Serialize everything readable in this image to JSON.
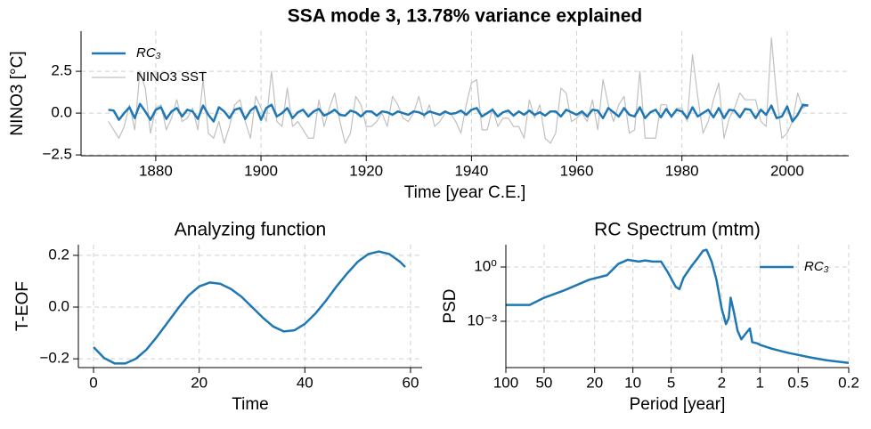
{
  "chart_data": [
    {
      "type": "line",
      "title": "SSA  mode 3, 13.78% variance explained",
      "xlabel": "Time [year C.E.]",
      "ylabel": "NINO3 [°C]",
      "x": [
        1871,
        1872,
        1873,
        1874,
        1875,
        1876,
        1877,
        1878,
        1879,
        1880,
        1881,
        1882,
        1883,
        1884,
        1885,
        1886,
        1887,
        1888,
        1889,
        1890,
        1891,
        1892,
        1893,
        1894,
        1895,
        1896,
        1897,
        1898,
        1899,
        1900,
        1901,
        1902,
        1903,
        1904,
        1905,
        1906,
        1907,
        1908,
        1909,
        1910,
        1911,
        1912,
        1913,
        1914,
        1915,
        1916,
        1917,
        1918,
        1919,
        1920,
        1921,
        1922,
        1923,
        1924,
        1925,
        1926,
        1927,
        1928,
        1929,
        1930,
        1931,
        1932,
        1933,
        1934,
        1935,
        1936,
        1937,
        1938,
        1939,
        1940,
        1941,
        1942,
        1943,
        1944,
        1945,
        1946,
        1947,
        1948,
        1949,
        1950,
        1951,
        1952,
        1953,
        1954,
        1955,
        1956,
        1957,
        1958,
        1959,
        1960,
        1961,
        1962,
        1963,
        1964,
        1965,
        1966,
        1967,
        1968,
        1969,
        1970,
        1971,
        1972,
        1973,
        1974,
        1975,
        1976,
        1977,
        1978,
        1979,
        1980,
        1981,
        1982,
        1983,
        1984,
        1985,
        1986,
        1987,
        1988,
        1989,
        1990,
        1991,
        1992,
        1993,
        1994,
        1995,
        1996,
        1997,
        1998,
        1999,
        2000,
        2001,
        2002,
        2003,
        2004
      ],
      "series": [
        {
          "name": "RC₃",
          "color": "#1f77b4",
          "values": [
            0.2,
            0.15,
            -0.4,
            0.0,
            0.35,
            -0.3,
            0.55,
            0.1,
            -0.4,
            0.2,
            0.35,
            -0.35,
            0.1,
            0.3,
            -0.2,
            0.2,
            0.1,
            -0.35,
            0.45,
            -0.1,
            -0.5,
            0.35,
            0.1,
            -0.3,
            0.2,
            0.3,
            -0.35,
            0.15,
            0.4,
            -0.4,
            0.3,
            0.5,
            -0.2,
            0.0,
            0.3,
            -0.3,
            0.05,
            0.2,
            -0.2,
            0.1,
            0.25,
            -0.15,
            0.0,
            0.2,
            -0.1,
            -0.15,
            0.15,
            0.05,
            -0.2,
            0.1,
            0.1,
            -0.15,
            0.1,
            0.05,
            -0.1,
            0.1,
            0.0,
            -0.1,
            0.1,
            0.05,
            -0.1,
            0.1,
            0.0,
            -0.1,
            0.1,
            -0.05,
            0.0,
            0.15,
            -0.1,
            0.2,
            0.3,
            -0.2,
            0.0,
            0.2,
            -0.2,
            0.05,
            0.15,
            -0.15,
            0.1,
            -0.1,
            0.15,
            -0.1,
            0.05,
            -0.15,
            0.1,
            0.1,
            -0.2,
            0.2,
            0.05,
            -0.1,
            0.1,
            -0.2,
            0.2,
            0.15,
            -0.3,
            0.3,
            0.05,
            -0.2,
            0.3,
            -0.1,
            -0.2,
            0.35,
            -0.3,
            0.05,
            0.2,
            -0.25,
            0.25,
            -0.2,
            0.2,
            0.1,
            -0.3,
            0.35,
            -0.2,
            0.0,
            0.2,
            -0.25,
            0.3,
            -0.3,
            0.2,
            0.15,
            -0.25,
            0.25,
            0.2,
            -0.3,
            0.2,
            -0.1,
            0.45,
            -0.3,
            -0.2,
            0.4,
            -0.5,
            -0.1,
            0.5,
            0.45
          ]
        },
        {
          "name": "NINO3 SST",
          "color": "#c0c0c0",
          "values": [
            -0.5,
            -1.0,
            -1.5,
            -0.8,
            0.5,
            -1.0,
            2.5,
            1.5,
            -1.2,
            0.3,
            0.5,
            -1.0,
            -0.3,
            0.8,
            -0.5,
            -0.3,
            0.3,
            -1.0,
            2.0,
            -1.2,
            -1.5,
            -0.5,
            -1.8,
            -0.8,
            0.5,
            0.8,
            -0.5,
            -1.5,
            1.0,
            0.3,
            -0.5,
            2.5,
            -0.5,
            -0.8,
            1.5,
            -0.8,
            -0.5,
            -1.0,
            -1.5,
            -1.5,
            0.8,
            -0.8,
            0.3,
            1.2,
            -0.5,
            -1.8,
            -1.2,
            1.0,
            0.5,
            -0.8,
            -0.8,
            -0.5,
            0.0,
            -0.8,
            1.0,
            0.5,
            -0.3,
            -0.5,
            0.0,
            1.0,
            -0.3,
            0.5,
            -0.8,
            -0.5,
            0.0,
            0.0,
            -0.5,
            -1.2,
            0.5,
            1.8,
            2.0,
            -1.0,
            -1.0,
            0.3,
            -0.8,
            -0.3,
            -0.3,
            -0.8,
            -0.8,
            -1.5,
            0.8,
            -0.3,
            0.5,
            -1.5,
            -1.8,
            -1.2,
            1.5,
            1.2,
            -0.5,
            -0.3,
            0.0,
            -0.5,
            0.8,
            -1.0,
            2.0,
            0.5,
            -0.5,
            0.5,
            1.0,
            -1.2,
            -1.0,
            2.5,
            -1.5,
            -1.5,
            -1.5,
            0.5,
            0.5,
            -0.3,
            0.3,
            0.3,
            -0.5,
            3.5,
            1.0,
            -1.2,
            -0.5,
            0.8,
            1.8,
            -1.5,
            -0.3,
            0.3,
            1.2,
            0.8,
            0.8,
            0.8,
            -0.5,
            -0.8,
            4.5,
            1.0,
            -1.5,
            -1.2,
            -0.5,
            1.2,
            0.3,
            0.5
          ]
        }
      ],
      "xlim": [
        1865.8,
        2011.7
      ],
      "xticks": [
        1880,
        1900,
        1920,
        1940,
        1960,
        1980,
        2000
      ],
      "ylim": [
        -2.55,
        4.9
      ],
      "yticks": [
        {
          "value": -2.5,
          "label": "−2.5"
        },
        {
          "value": 0,
          "label": "0.0"
        },
        2.5
      ],
      "grid": true,
      "legend": "upper left"
    },
    {
      "type": "line",
      "title": "Analyzing function",
      "xlabel": "Time",
      "ylabel": "T-EOF",
      "x": [
        0,
        2,
        4,
        6,
        8,
        10,
        12,
        14,
        16,
        18,
        20,
        22,
        24,
        26,
        28,
        30,
        32,
        34,
        36,
        38,
        40,
        42,
        44,
        46,
        48,
        50,
        52,
        54,
        56,
        58,
        59
      ],
      "values": [
        -0.155,
        -0.197,
        -0.218,
        -0.218,
        -0.2,
        -0.165,
        -0.115,
        -0.06,
        -0.005,
        0.045,
        0.08,
        0.095,
        0.09,
        0.07,
        0.04,
        0.0,
        -0.04,
        -0.075,
        -0.094,
        -0.09,
        -0.065,
        -0.025,
        0.025,
        0.08,
        0.13,
        0.175,
        0.205,
        0.215,
        0.205,
        0.175,
        0.155
      ],
      "color": "#1f77b4",
      "xlim": [
        -2.87,
        62.2
      ],
      "xticks": [
        0,
        20,
        40,
        60
      ],
      "ylim": [
        -0.234,
        0.241
      ],
      "yticks": [
        {
          "value": -0.2,
          "label": "−0.2"
        },
        {
          "value": 0,
          "label": "0.0"
        },
        0.2
      ],
      "grid": true
    },
    {
      "type": "line",
      "title": "RC Spectrum (mtm)",
      "xlabel": "Period [year]",
      "ylabel": "PSD",
      "x": [
        100,
        65,
        50,
        35,
        22,
        16,
        13,
        11,
        9,
        8,
        7,
        6,
        5.3,
        4.6,
        4.3,
        4.0,
        3.5,
        3.1,
        2.8,
        2.63,
        2.4,
        2.2,
        2.0,
        1.85,
        1.76,
        1.7,
        1.6,
        1.5,
        1.4,
        1.3,
        1.2,
        1.15,
        1.05,
        1.0,
        0.8,
        0.6,
        0.4,
        0.3,
        0.2
      ],
      "series": [
        {
          "name": "RC₃",
          "color": "#1f77b4",
          "values": [
            0.008,
            0.008,
            0.02,
            0.05,
            0.2,
            0.35,
            1.5,
            2.5,
            2.0,
            2.3,
            2.0,
            2.0,
            0.5,
            0.08,
            0.06,
            0.25,
            1.0,
            3.0,
            8,
            9,
            2,
            0.2,
            0.005,
            0.0007,
            0.0015,
            0.02,
            0.003,
            0.0003,
            0.0001,
            0.0002,
            0.0004,
            7e-05,
            6e-05,
            5e-05,
            3e-05,
            1.8e-05,
            1e-05,
            7e-06,
            5e-06
          ]
        }
      ],
      "xscale": "log",
      "yscale": "log",
      "xlim": [
        100,
        0.2
      ],
      "xticks": [
        100,
        50,
        20,
        10,
        5,
        2,
        1,
        0.5,
        0.2
      ],
      "ylim": [
        2.75e-06,
        17
      ],
      "yticks": [
        {
          "value": 0.001,
          "label": "10⁻³"
        },
        {
          "value": 1,
          "label": "10⁰"
        }
      ],
      "grid": true,
      "legend": "upper right"
    }
  ]
}
